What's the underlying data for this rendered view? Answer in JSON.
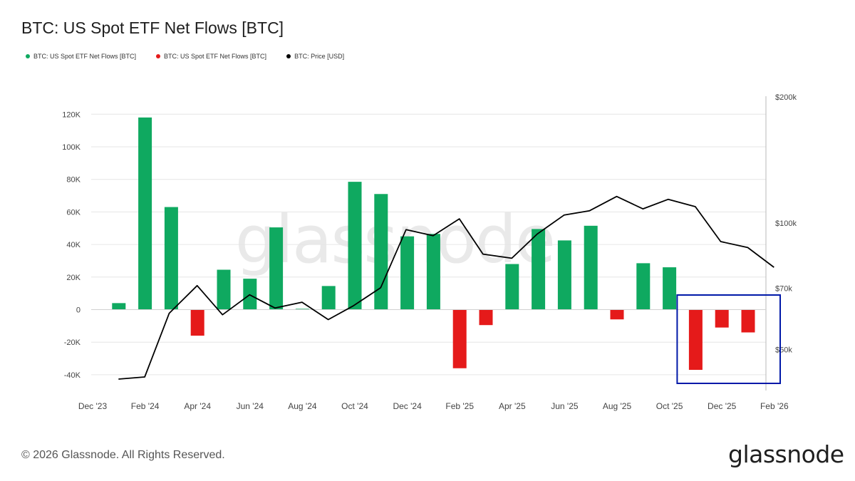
{
  "title": "BTC: US Spot ETF Net Flows [BTC]",
  "legend": [
    {
      "label": "BTC: US Spot ETF Net Flows [BTC]",
      "color": "#0fa960"
    },
    {
      "label": "BTC: US Spot ETF Net Flows [BTC]",
      "color": "#e51a1a"
    },
    {
      "label": "BTC: Price [USD]",
      "color": "#000000"
    }
  ],
  "watermark": "glassnode",
  "footer": "© 2026 Glassnode. All Rights Reserved.",
  "brand": "glassnode",
  "colors": {
    "positive": "#0fa960",
    "negative": "#e51a1a",
    "price": "#000000",
    "highlight": "#0018a8",
    "grid": "#e6e6e6"
  },
  "chart_data": {
    "type": "bar",
    "x_ticks": [
      "Dec '23",
      "Feb '24",
      "Apr '24",
      "Jun '24",
      "Aug '24",
      "Oct '24",
      "Dec '24",
      "Feb '25",
      "Apr '25",
      "Jun '25",
      "Aug '25",
      "Oct '25",
      "Dec '25",
      "Feb '26"
    ],
    "y_left_ticks": [
      "120K",
      "100K",
      "80K",
      "60K",
      "40K",
      "20K",
      "0",
      "-20K",
      "-40K"
    ],
    "y_right_ticks": [
      "$200k",
      "$100k",
      "$70k",
      "$50k"
    ],
    "ylim_left": [
      -45000,
      125000
    ],
    "y_right_scale": "log",
    "ylim_right": [
      42000,
      200000
    ],
    "months": [
      "2024-01",
      "2024-02",
      "2024-03",
      "2024-04",
      "2024-05",
      "2024-06",
      "2024-07",
      "2024-08",
      "2024-09",
      "2024-10",
      "2024-11",
      "2024-12",
      "2025-01",
      "2025-02",
      "2025-03",
      "2025-04",
      "2025-05",
      "2025-06",
      "2025-07",
      "2025-08",
      "2025-09",
      "2025-10",
      "2025-11",
      "2025-12",
      "2026-01"
    ],
    "net_flows_btc": [
      4000,
      118000,
      63000,
      -16000,
      24500,
      19000,
      50500,
      500,
      14500,
      78500,
      71000,
      45000,
      46500,
      -36000,
      -9500,
      28000,
      49500,
      42500,
      51500,
      -6000,
      28500,
      26000,
      -37000,
      -11000,
      -14000
    ],
    "price_points": [
      {
        "date": "2023-12-31",
        "price": 42500
      },
      {
        "date": "2024-01-31",
        "price": 43000
      },
      {
        "date": "2024-02-29",
        "price": 61000
      },
      {
        "date": "2024-03-31",
        "price": 71000
      },
      {
        "date": "2024-04-30",
        "price": 60500
      },
      {
        "date": "2024-05-31",
        "price": 67500
      },
      {
        "date": "2024-06-30",
        "price": 62800
      },
      {
        "date": "2024-07-31",
        "price": 64800
      },
      {
        "date": "2024-08-31",
        "price": 58900
      },
      {
        "date": "2024-09-30",
        "price": 63600
      },
      {
        "date": "2024-10-31",
        "price": 70200
      },
      {
        "date": "2024-11-30",
        "price": 96500
      },
      {
        "date": "2024-12-31",
        "price": 93400
      },
      {
        "date": "2025-01-31",
        "price": 102400
      },
      {
        "date": "2025-02-28",
        "price": 84400
      },
      {
        "date": "2025-03-31",
        "price": 82500
      },
      {
        "date": "2025-04-30",
        "price": 94200
      },
      {
        "date": "2025-05-31",
        "price": 104600
      },
      {
        "date": "2025-06-30",
        "price": 107100
      },
      {
        "date": "2025-07-31",
        "price": 115800
      },
      {
        "date": "2025-08-31",
        "price": 108200
      },
      {
        "date": "2025-09-30",
        "price": 114000
      },
      {
        "date": "2025-10-31",
        "price": 109500
      },
      {
        "date": "2025-11-30",
        "price": 90400
      },
      {
        "date": "2025-12-31",
        "price": 87500
      },
      {
        "date": "2026-01-31",
        "price": 78500
      }
    ],
    "highlight_months": [
      "2025-11",
      "2026-01"
    ],
    "grid": true,
    "legend_position": "top-left"
  }
}
